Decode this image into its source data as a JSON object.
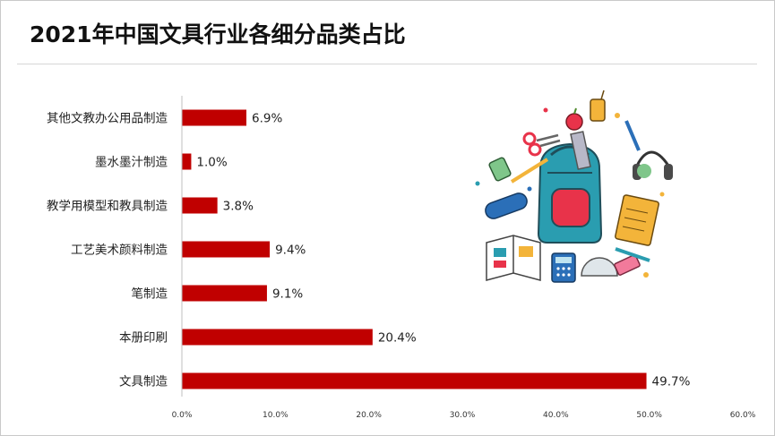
{
  "title": "2021年中国文具行业各细分品类占比",
  "accent_color": "#c00000",
  "illustration": "school-supplies-illustration",
  "chart_data": {
    "type": "bar",
    "orientation": "horizontal",
    "title": "2021年中国文具行业各细分品类占比",
    "categories": [
      "其他文教办公用品制造",
      "墨水墨汁制造",
      "教学用模型和教具制造",
      "工艺美术颜料制造",
      "笔制造",
      "本册印刷",
      "文具制造"
    ],
    "values": [
      6.9,
      1.0,
      3.8,
      9.4,
      9.1,
      20.4,
      49.7
    ],
    "value_labels": [
      "6.9%",
      "1.0%",
      "3.8%",
      "9.4%",
      "9.1%",
      "20.4%",
      "49.7%"
    ],
    "xlim": [
      0,
      60
    ],
    "xticks": [
      0,
      10,
      20,
      30,
      40,
      50,
      60
    ],
    "xtick_labels": [
      "0.0%",
      "10.0%",
      "20.0%",
      "30.0%",
      "40.0%",
      "50.0%",
      "60.0%"
    ],
    "xlabel": "",
    "ylabel": "",
    "grid": false,
    "legend": "none",
    "bar_color": "#c00000"
  }
}
